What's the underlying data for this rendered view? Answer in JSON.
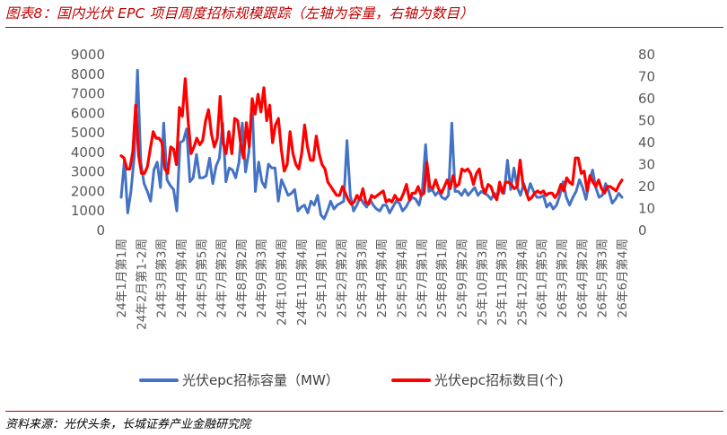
{
  "header": {
    "title": "图表8：国内光伏 EPC 项目周度招标规模跟踪（左轴为容量，右轴为数目）"
  },
  "footer": {
    "source": "资料来源：光伏头条，长城证券产业金融研究院"
  },
  "colors": {
    "title": "#c00000",
    "capacity_series": "#4472c4",
    "count_series": "#ff0000",
    "axis_text": "#595959"
  },
  "chart_data": {
    "type": "line",
    "title": "",
    "ylabel": "",
    "y2label": "",
    "ylim": [
      0,
      9000
    ],
    "yticks": [
      0,
      1000,
      2000,
      3000,
      4000,
      5000,
      6000,
      7000,
      8000,
      9000
    ],
    "y2lim": [
      0,
      80
    ],
    "y2ticks": [
      0,
      10,
      20,
      30,
      40,
      50,
      60,
      70,
      80
    ],
    "grid": false,
    "legend_position": "bottom",
    "x_tick_labels": [
      "24年1月第1周",
      "24年2月第1-2周",
      "24年3月第3周",
      "24年4月第4周",
      "24年5月第5周",
      "24年7月第2周",
      "24年8月第2周",
      "24年9月第3周",
      "24年10月第4周",
      "24年11月第4周",
      "25年1月第1周",
      "25年2月第2周",
      "25年3月第3周",
      "25年4月第4周",
      "25年5月第4周",
      "25年7月第1周",
      "25年8月第1周",
      "25年9月第2周",
      "25年10月第3周",
      "25年11月第3周",
      "25年12月第4周",
      "26年1月第5周",
      "26年3月第2周",
      "26年4月第2周",
      "26年5月第3周",
      "26年6月第4周"
    ],
    "series": [
      {
        "name": "光伏epc招标容量（MW）",
        "axis": "left",
        "values": [
          1700,
          3600,
          900,
          2000,
          3800,
          8200,
          3500,
          2400,
          2000,
          1500,
          3100,
          3500,
          2200,
          5500,
          2600,
          2300,
          2100,
          1000,
          4500,
          4600,
          5200,
          2500,
          2700,
          3900,
          2700,
          2700,
          2800,
          3700,
          2400,
          3300,
          3700,
          5500,
          2500,
          3200,
          3100,
          2700,
          3500,
          5500,
          3000,
          4000,
          6700,
          2000,
          3500,
          2500,
          2200,
          3400,
          3200,
          3200,
          1500,
          2600,
          2200,
          1800,
          1900,
          2100,
          1000,
          1200,
          1300,
          900,
          1500,
          1300,
          1800,
          800,
          600,
          1000,
          1500,
          1100,
          1300,
          1400,
          1500,
          4600,
          1800,
          1000,
          1300,
          1700,
          1400,
          1200,
          1600,
          1300,
          1100,
          1000,
          1300,
          1300,
          900,
          1200,
          1500,
          1400,
          1000,
          1200,
          1500,
          1700,
          1600,
          1300,
          2000,
          4400,
          2000,
          2100,
          1800,
          2000,
          1700,
          1600,
          1800,
          5500,
          2000,
          2000,
          1800,
          2100,
          1800,
          2000,
          2200,
          1800,
          2000,
          1900,
          1800,
          1600,
          1900,
          1800,
          2200,
          1900,
          3600,
          2100,
          3200,
          2200,
          1800,
          2400,
          1800,
          2400,
          2000,
          1700,
          1700,
          1800,
          1200,
          1400,
          1100,
          1300,
          1800,
          2500,
          1700,
          1300,
          1700,
          2000,
          2600,
          2200,
          1600,
          2500,
          3100,
          2200,
          1700,
          1800,
          2400,
          2000,
          1400,
          1600,
          1900,
          1700
        ]
      },
      {
        "name": "光伏epc招标数目(个)",
        "axis": "right",
        "values": [
          34,
          33,
          28,
          28,
          36,
          57,
          34,
          26,
          26,
          29,
          37,
          45,
          42,
          42,
          40,
          28,
          26,
          38,
          37,
          30,
          56,
          52,
          69,
          50,
          35,
          38,
          42,
          39,
          41,
          50,
          55,
          44,
          38,
          42,
          61,
          40,
          35,
          45,
          35,
          51,
          50,
          40,
          33,
          49,
          38,
          60,
          53,
          62,
          54,
          65,
          50,
          57,
          40,
          48,
          51,
          37,
          27,
          30,
          45,
          35,
          30,
          28,
          35,
          48,
          38,
          32,
          32,
          43,
          35,
          30,
          28,
          22,
          20,
          18,
          16,
          16,
          20,
          17,
          14,
          12,
          13,
          16,
          14,
          19,
          13,
          12,
          16,
          15,
          16,
          17,
          18,
          13,
          14,
          13,
          16,
          14,
          14,
          17,
          21,
          14,
          17,
          17,
          20,
          16,
          17,
          31,
          20,
          19,
          23,
          19,
          17,
          20,
          23,
          19,
          25,
          20,
          21,
          28,
          27,
          28,
          26,
          21,
          26,
          28,
          20,
          17,
          21,
          20,
          16,
          14,
          22,
          17,
          22,
          22,
          21,
          19,
          20,
          32,
          21,
          18,
          14,
          15,
          17,
          18,
          17,
          18,
          16,
          17,
          17,
          15,
          17,
          21,
          18,
          24,
          22,
          21,
          33,
          33,
          26,
          27,
          18,
          25,
          22,
          20,
          23,
          19,
          17,
          20,
          20,
          19,
          18,
          21,
          23
        ]
      }
    ]
  }
}
